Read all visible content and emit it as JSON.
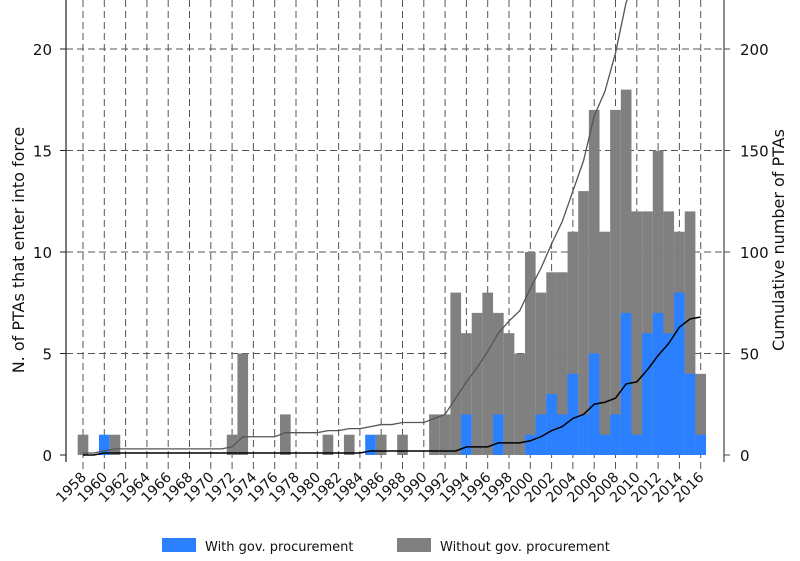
{
  "chart_data": {
    "type": "bar",
    "title": "",
    "xlabel": "",
    "ylabel": "N. of PTAs that enter into force",
    "ylabel_right": "Cumulative number of PTAs",
    "ylim": [
      0,
      20
    ],
    "ylim_right": [
      0,
      200
    ],
    "yticks": [
      "0",
      "5",
      "10",
      "15",
      "20"
    ],
    "yticks_right": [
      "0",
      "50",
      "100",
      "150",
      "200"
    ],
    "xticks": [
      "1958",
      "1960",
      "1962",
      "1964",
      "1966",
      "1968",
      "1970",
      "1972",
      "1974",
      "1976",
      "1978",
      "1980",
      "1982",
      "1984",
      "1986",
      "1988",
      "1990",
      "1992",
      "1994",
      "1996",
      "1998",
      "2000",
      "2002",
      "2004",
      "2006",
      "2008",
      "2010",
      "2012",
      "2014",
      "2016"
    ],
    "years": [
      1958,
      1959,
      1960,
      1961,
      1962,
      1963,
      1964,
      1965,
      1966,
      1967,
      1968,
      1969,
      1970,
      1971,
      1972,
      1973,
      1974,
      1975,
      1976,
      1977,
      1978,
      1979,
      1980,
      1981,
      1982,
      1983,
      1984,
      1985,
      1986,
      1987,
      1988,
      1989,
      1990,
      1991,
      1992,
      1993,
      1994,
      1995,
      1996,
      1997,
      1998,
      1999,
      2000,
      2001,
      2002,
      2003,
      2004,
      2005,
      2006,
      2007,
      2008,
      2009,
      2010,
      2011,
      2012,
      2013,
      2014,
      2015,
      2016
    ],
    "series": [
      {
        "name": "Without gov. procurement",
        "color": "#808080",
        "values": [
          1,
          0,
          0,
          1,
          0,
          0,
          0,
          0,
          0,
          0,
          0,
          0,
          0,
          0,
          1,
          5,
          0,
          0,
          0,
          2,
          0,
          0,
          0,
          1,
          0,
          1,
          0,
          0,
          1,
          0,
          1,
          0,
          0,
          2,
          2,
          8,
          6,
          7,
          8,
          7,
          6,
          5,
          10,
          8,
          9,
          9,
          11,
          13,
          17,
          11,
          17,
          18,
          12,
          12,
          15,
          12,
          11,
          12,
          4
        ]
      },
      {
        "name": "With gov. procurement",
        "color": "#2a80ff",
        "values": [
          0,
          0,
          1,
          0,
          0,
          0,
          0,
          0,
          0,
          0,
          0,
          0,
          0,
          0,
          0,
          0,
          0,
          0,
          0,
          0,
          0,
          0,
          0,
          0,
          0,
          0,
          0,
          1,
          0,
          0,
          0,
          0,
          0,
          0,
          0,
          0,
          2,
          0,
          0,
          2,
          0,
          0,
          1,
          2,
          3,
          2,
          4,
          2,
          5,
          1,
          2,
          7,
          1,
          6,
          7,
          6,
          8,
          4,
          1
        ]
      }
    ],
    "cumulative_lines": [
      "Cumulative all PTAs (grey line)",
      "Cumulative PTAs with gov. procurement (black line)"
    ],
    "grid": true,
    "legend": "bottom-center"
  }
}
